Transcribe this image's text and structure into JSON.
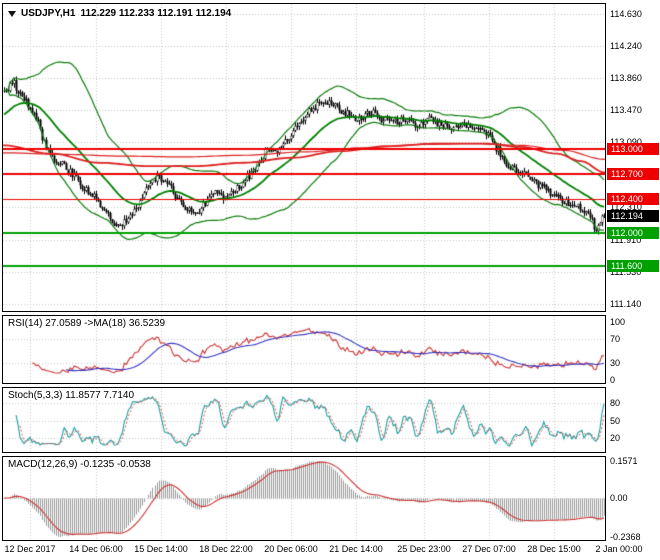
{
  "header": {
    "symbol": "USDJPY,H1",
    "quote": "112.229 112.233 112.191 112.194"
  },
  "colors": {
    "background": "#ffffff",
    "border": "#000000",
    "grid": "#c8c8c8",
    "candle_up": "#ffffff",
    "candle_down": "#000000",
    "candle_outline": "#000000",
    "bollinger": "#0e7d0e",
    "ma_green": "#008000",
    "ma_red": "#dd2222",
    "resistance": "#ee0000",
    "support": "#00a000",
    "current_price_tag": "#000000",
    "text": "#000000"
  },
  "chart_data": [
    {
      "type": "candlestick",
      "symbol": "USDJPY",
      "timeframe": "H1",
      "open": 112.229,
      "high": 112.233,
      "low": 112.191,
      "close": 112.194,
      "bars": 300,
      "noise_seed": 20180102,
      "noise_amp": 0.05,
      "ylim": [
        111.06,
        114.75
      ],
      "y_ticks": [
        "114.630",
        "114.240",
        "113.860",
        "113.470",
        "113.090",
        "112.700",
        "112.310",
        "111.910",
        "111.530",
        "111.140"
      ],
      "x_axis": {
        "labels": [
          "12 Dec 2017",
          "14 Dec 06:00",
          "15 Dec 14:00",
          "18 Dec 22:00",
          "20 Dec 06:00",
          "21 Dec 14:00",
          "25 Dec 23:00",
          "27 Dec 07:00",
          "28 Dec 15:00",
          "2 Jan 00:00"
        ],
        "centers": [
          30,
          96,
          161,
          226,
          291,
          356,
          424,
          489,
          554,
          619
        ]
      },
      "levels": [
        {
          "price": 113.0,
          "label": "113.000",
          "color": "#ee0000",
          "width": 2,
          "kind": "resistance"
        },
        {
          "price": 112.7,
          "label": "112.700",
          "color": "#ee0000",
          "width": 2,
          "kind": "resistance"
        },
        {
          "price": 112.4,
          "label": "112.400",
          "color": "#ee0000",
          "width": 1,
          "kind": "resistance"
        },
        {
          "price": 112.0,
          "label": "112.000",
          "color": "#00a000",
          "width": 2,
          "kind": "support"
        },
        {
          "price": 111.6,
          "label": "111.600",
          "color": "#00a000",
          "width": 2,
          "kind": "support"
        }
      ],
      "current_price": {
        "price": 112.194,
        "label": "112.194",
        "box_color": "#000000"
      },
      "price_path": [
        [
          0.0,
          113.7
        ],
        [
          0.015,
          113.8
        ],
        [
          0.03,
          113.62
        ],
        [
          0.05,
          113.42
        ],
        [
          0.07,
          113.05
        ],
        [
          0.09,
          112.86
        ],
        [
          0.11,
          112.72
        ],
        [
          0.13,
          112.56
        ],
        [
          0.15,
          112.42
        ],
        [
          0.17,
          112.27
        ],
        [
          0.19,
          112.07
        ],
        [
          0.205,
          112.13
        ],
        [
          0.22,
          112.32
        ],
        [
          0.24,
          112.56
        ],
        [
          0.255,
          112.68
        ],
        [
          0.27,
          112.61
        ],
        [
          0.285,
          112.42
        ],
        [
          0.3,
          112.31
        ],
        [
          0.32,
          112.21
        ],
        [
          0.335,
          112.36
        ],
        [
          0.35,
          112.48
        ],
        [
          0.365,
          112.42
        ],
        [
          0.38,
          112.5
        ],
        [
          0.395,
          112.56
        ],
        [
          0.41,
          112.7
        ],
        [
          0.425,
          112.86
        ],
        [
          0.44,
          113.02
        ],
        [
          0.455,
          112.96
        ],
        [
          0.47,
          113.12
        ],
        [
          0.485,
          113.24
        ],
        [
          0.5,
          113.37
        ],
        [
          0.515,
          113.5
        ],
        [
          0.53,
          113.6
        ],
        [
          0.545,
          113.57
        ],
        [
          0.56,
          113.47
        ],
        [
          0.575,
          113.42
        ],
        [
          0.59,
          113.38
        ],
        [
          0.61,
          113.45
        ],
        [
          0.63,
          113.37
        ],
        [
          0.65,
          113.32
        ],
        [
          0.67,
          113.36
        ],
        [
          0.69,
          113.3
        ],
        [
          0.71,
          113.36
        ],
        [
          0.73,
          113.28
        ],
        [
          0.75,
          113.24
        ],
        [
          0.77,
          113.3
        ],
        [
          0.79,
          113.27
        ],
        [
          0.805,
          113.18
        ],
        [
          0.82,
          113.0
        ],
        [
          0.835,
          112.84
        ],
        [
          0.85,
          112.77
        ],
        [
          0.865,
          112.7
        ],
        [
          0.88,
          112.62
        ],
        [
          0.895,
          112.54
        ],
        [
          0.91,
          112.48
        ],
        [
          0.925,
          112.41
        ],
        [
          0.94,
          112.36
        ],
        [
          0.955,
          112.31
        ],
        [
          0.97,
          112.26
        ],
        [
          0.978,
          112.15
        ],
        [
          0.985,
          112.02
        ],
        [
          0.991,
          112.08
        ],
        [
          1.0,
          112.194
        ]
      ],
      "overlays": {
        "bollinger": {
          "period": 34,
          "deviation": 2,
          "color": "#0e7d0e"
        },
        "ma_green": {
          "period": 30,
          "start": 113.4,
          "color": "#008000"
        },
        "ma_red_1": {
          "color": "#dd2222",
          "anchors": [
            [
              0.0,
              113.05
            ],
            [
              0.08,
              112.95
            ],
            [
              0.16,
              112.84
            ],
            [
              0.24,
              112.8
            ],
            [
              0.32,
              112.8
            ],
            [
              0.4,
              112.84
            ],
            [
              0.48,
              112.9
            ],
            [
              0.56,
              112.98
            ],
            [
              0.64,
              113.04
            ],
            [
              0.72,
              113.07
            ],
            [
              0.8,
              113.07
            ],
            [
              0.86,
              113.03
            ],
            [
              0.92,
              112.95
            ],
            [
              0.96,
              112.86
            ],
            [
              1.0,
              112.72
            ]
          ]
        },
        "ma_red_2": {
          "color": "#dd2222",
          "anchors": [
            [
              0.0,
              112.96
            ],
            [
              0.1,
              112.94
            ],
            [
              0.2,
              112.92
            ],
            [
              0.3,
              112.91
            ],
            [
              0.4,
              112.93
            ],
            [
              0.5,
              112.97
            ],
            [
              0.6,
              113.02
            ],
            [
              0.7,
              113.06
            ],
            [
              0.78,
              113.07
            ],
            [
              0.86,
              113.05
            ],
            [
              0.93,
              112.99
            ],
            [
              1.0,
              112.88
            ]
          ]
        }
      }
    },
    {
      "type": "line",
      "name": "RSI",
      "title": "RSI(14) 27.0589 ->MA(18) 36.5239",
      "period": 14,
      "value": 27.0589,
      "ma_period": 18,
      "ma_value": 36.5239,
      "range": [
        0,
        100
      ],
      "levels": [
        70,
        30
      ],
      "y_ticks": [
        {
          "v": 100,
          "label": "100"
        },
        {
          "v": 70,
          "label": "70"
        },
        {
          "v": 30,
          "label": "30"
        },
        {
          "v": 0,
          "label": "0"
        }
      ],
      "colors": {
        "line": "#cd3636",
        "ma": "#3434c0"
      }
    },
    {
      "type": "line",
      "name": "Stochastic",
      "title": "Stoch(5,3,3) 11.8577 7.7140",
      "k_value": 11.8577,
      "d_value": 7.714,
      "range": [
        0,
        100
      ],
      "levels": [
        80,
        50,
        20
      ],
      "y_ticks": [
        {
          "v": 80,
          "label": "80"
        },
        {
          "v": 50,
          "label": "50"
        },
        {
          "v": 20,
          "label": "20"
        }
      ],
      "colors": {
        "k": "#1ba0a0",
        "d": "#e05555"
      }
    },
    {
      "type": "bar",
      "name": "MACD",
      "title": "MACD(12,26,9) -0.1235 -0.0538",
      "macd_value": -0.1235,
      "signal_value": -0.0538,
      "y_ticks": [
        {
          "v": 0.1571,
          "label": "0.1571"
        },
        {
          "v": 0,
          "label": "0.00"
        },
        {
          "v": -0.2368,
          "label": "-0.2368"
        }
      ],
      "colors": {
        "hist": "#9a9a9a",
        "signal": "#cc3434"
      }
    }
  ]
}
